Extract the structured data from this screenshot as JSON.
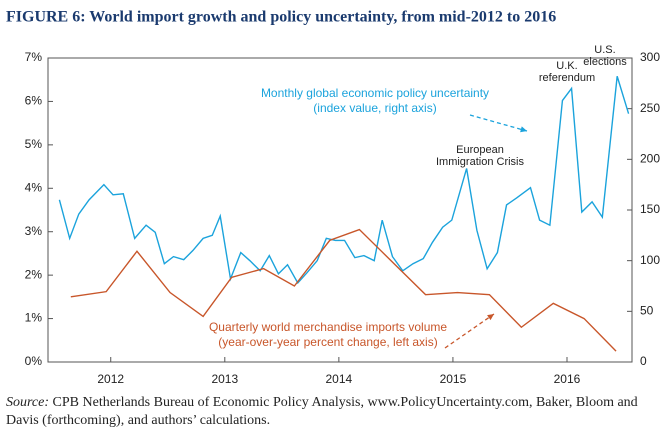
{
  "chart_data": {
    "type": "line",
    "title": "FIGURE 6:  World import growth and policy uncertainty, from mid-2012 to 2016",
    "xlim": [
      2011.45,
      2016.57
    ],
    "xticks": [
      2012,
      2013,
      2014,
      2015,
      2016
    ],
    "ylim": [
      0,
      7
    ],
    "yticks": [
      {
        "value": 0,
        "label": "0%"
      },
      {
        "value": 1,
        "label": "1%"
      },
      {
        "value": 2,
        "label": "2%"
      },
      {
        "value": 3,
        "label": "3%"
      },
      {
        "value": 4,
        "label": "4%"
      },
      {
        "value": 5,
        "label": "5%"
      },
      {
        "value": 6,
        "label": "6%"
      },
      {
        "value": 7,
        "label": "7%"
      }
    ],
    "y2lim": [
      0,
      300
    ],
    "y2ticks": [
      0,
      50,
      100,
      150,
      200,
      250,
      300
    ],
    "series": [
      {
        "label": [
          "Monthly global economic policy uncertainty",
          "(index value, right axis)"
        ],
        "color": "#1ba3dc",
        "axis": "y2",
        "x": [
          2011.55,
          2011.64,
          2011.72,
          2011.81,
          2011.94,
          2012.02,
          2012.11,
          2012.21,
          2012.31,
          2012.39,
          2012.47,
          2012.55,
          2012.64,
          2012.72,
          2012.81,
          2012.89,
          2012.96,
          2013.05,
          2013.14,
          2013.22,
          2013.31,
          2013.39,
          2013.47,
          2013.55,
          2013.64,
          2013.72,
          2013.81,
          2013.89,
          2013.97,
          2014.05,
          2014.14,
          2014.22,
          2014.31,
          2014.38,
          2014.47,
          2014.56,
          2014.65,
          2014.74,
          2014.82,
          2014.91,
          2014.99,
          2015.12,
          2015.21,
          2015.3,
          2015.39,
          2015.47,
          2015.56,
          2015.68,
          2015.76,
          2015.85,
          2015.96,
          2016.04,
          2016.13,
          2016.22,
          2016.31,
          2016.44,
          2016.54
        ],
        "values": [
          160,
          122,
          146,
          160,
          175,
          165,
          166,
          122,
          135,
          128,
          97,
          104,
          101,
          110,
          122,
          125,
          144,
          82,
          108,
          100,
          90,
          105,
          87,
          96,
          78,
          88,
          100,
          122,
          120,
          120,
          103,
          105,
          100,
          140,
          104,
          90,
          97,
          102,
          118,
          133,
          140,
          191,
          130,
          92,
          108,
          155,
          162,
          172,
          140,
          135,
          258,
          270,
          148,
          158,
          143,
          282,
          245
        ]
      },
      {
        "label": [
          "Quarterly world merchandise imports volume",
          "(year-over-year percent change, left axis)"
        ],
        "color": "#c8562a",
        "axis": "y",
        "x": [
          2011.65,
          2011.96,
          2012.23,
          2012.52,
          2012.81,
          2013.06,
          2013.34,
          2013.61,
          2013.92,
          2014.18,
          2014.47,
          2014.76,
          2015.04,
          2015.32,
          2015.6,
          2015.88,
          2016.15,
          2016.43
        ],
        "values": [
          1.5,
          1.62,
          2.55,
          1.6,
          1.05,
          1.95,
          2.15,
          1.75,
          2.8,
          3.05,
          2.3,
          1.55,
          1.6,
          1.55,
          0.8,
          1.35,
          1.0,
          0.25
        ]
      }
    ],
    "annotations": [
      {
        "lines": [
          "European",
          "Immigration Crisis"
        ]
      },
      {
        "lines": [
          "U.K.",
          "referendum"
        ]
      },
      {
        "lines": [
          "U.S.",
          "elections"
        ]
      }
    ],
    "source_label": "Source:",
    "source": "CPB Netherlands Bureau of Economic Policy Analysis, www.PolicyUncertainty.com, Baker, Bloom and Davis (forthcoming), and authors’ calculations."
  }
}
